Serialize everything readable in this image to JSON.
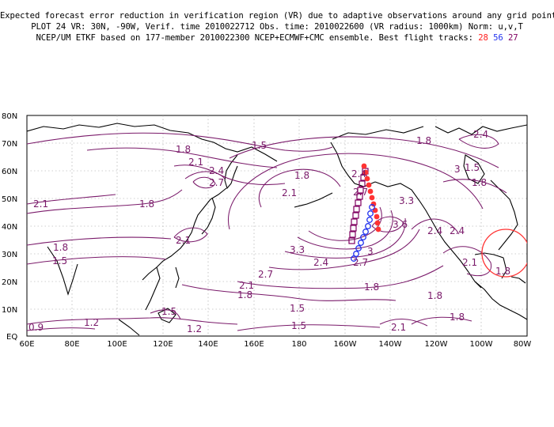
{
  "header": {
    "line1": "Expected forecast error reduction in verification region (VR) due to adaptive observations around any grid point.",
    "line2": "PLOT 24 VR: 30N, -90W, Verif. time 2010022712 Obs. time: 2010022600 (VR radius: 1000km) Norm: u,v,T",
    "line3_prefix": "NCEP/UM ETKF based on 177-member 2010022300 NCEP+ECMWF+CMC ensemble. Best flight tracks: ",
    "track_a": "28",
    "track_b": "56",
    "track_c": "27"
  },
  "map": {
    "lat_labels": [
      "80N",
      "70N",
      "60N",
      "50N",
      "40N",
      "30N",
      "20N",
      "10N",
      "EQ"
    ],
    "lon_labels": [
      "60E",
      "80E",
      "100E",
      "120E",
      "140E",
      "160E",
      "180",
      "160W",
      "140W",
      "120W",
      "100W",
      "80W"
    ],
    "contour_labels": [
      "1.5",
      "1.8",
      "1.8",
      "2.1",
      "2.4",
      "2.7",
      "2.1",
      "1.8",
      "2.1",
      "2.4",
      "2.7",
      "1.8",
      "1.5",
      "2.4",
      "1.8",
      "2.1",
      "1.8",
      "3",
      "3.3",
      "3.6",
      "3.3",
      "3",
      "2.7",
      "2.4",
      "2.4",
      "2.4",
      "2.1",
      "1.8",
      "1.8",
      "1.5",
      "2.7",
      "2.1",
      "1.8",
      "1.5",
      "1.5",
      "1.2",
      "1.2",
      "0.9",
      "1.5",
      "2.1",
      "1.8",
      "1.8"
    ],
    "colors": {
      "contour": "#7a1a6a",
      "track_red": "#ff3333",
      "track_blue": "#2233ee",
      "track_purple": "#800060",
      "vr_circle": "#ff3333",
      "coast": "#000000",
      "grid": "#999999"
    }
  }
}
